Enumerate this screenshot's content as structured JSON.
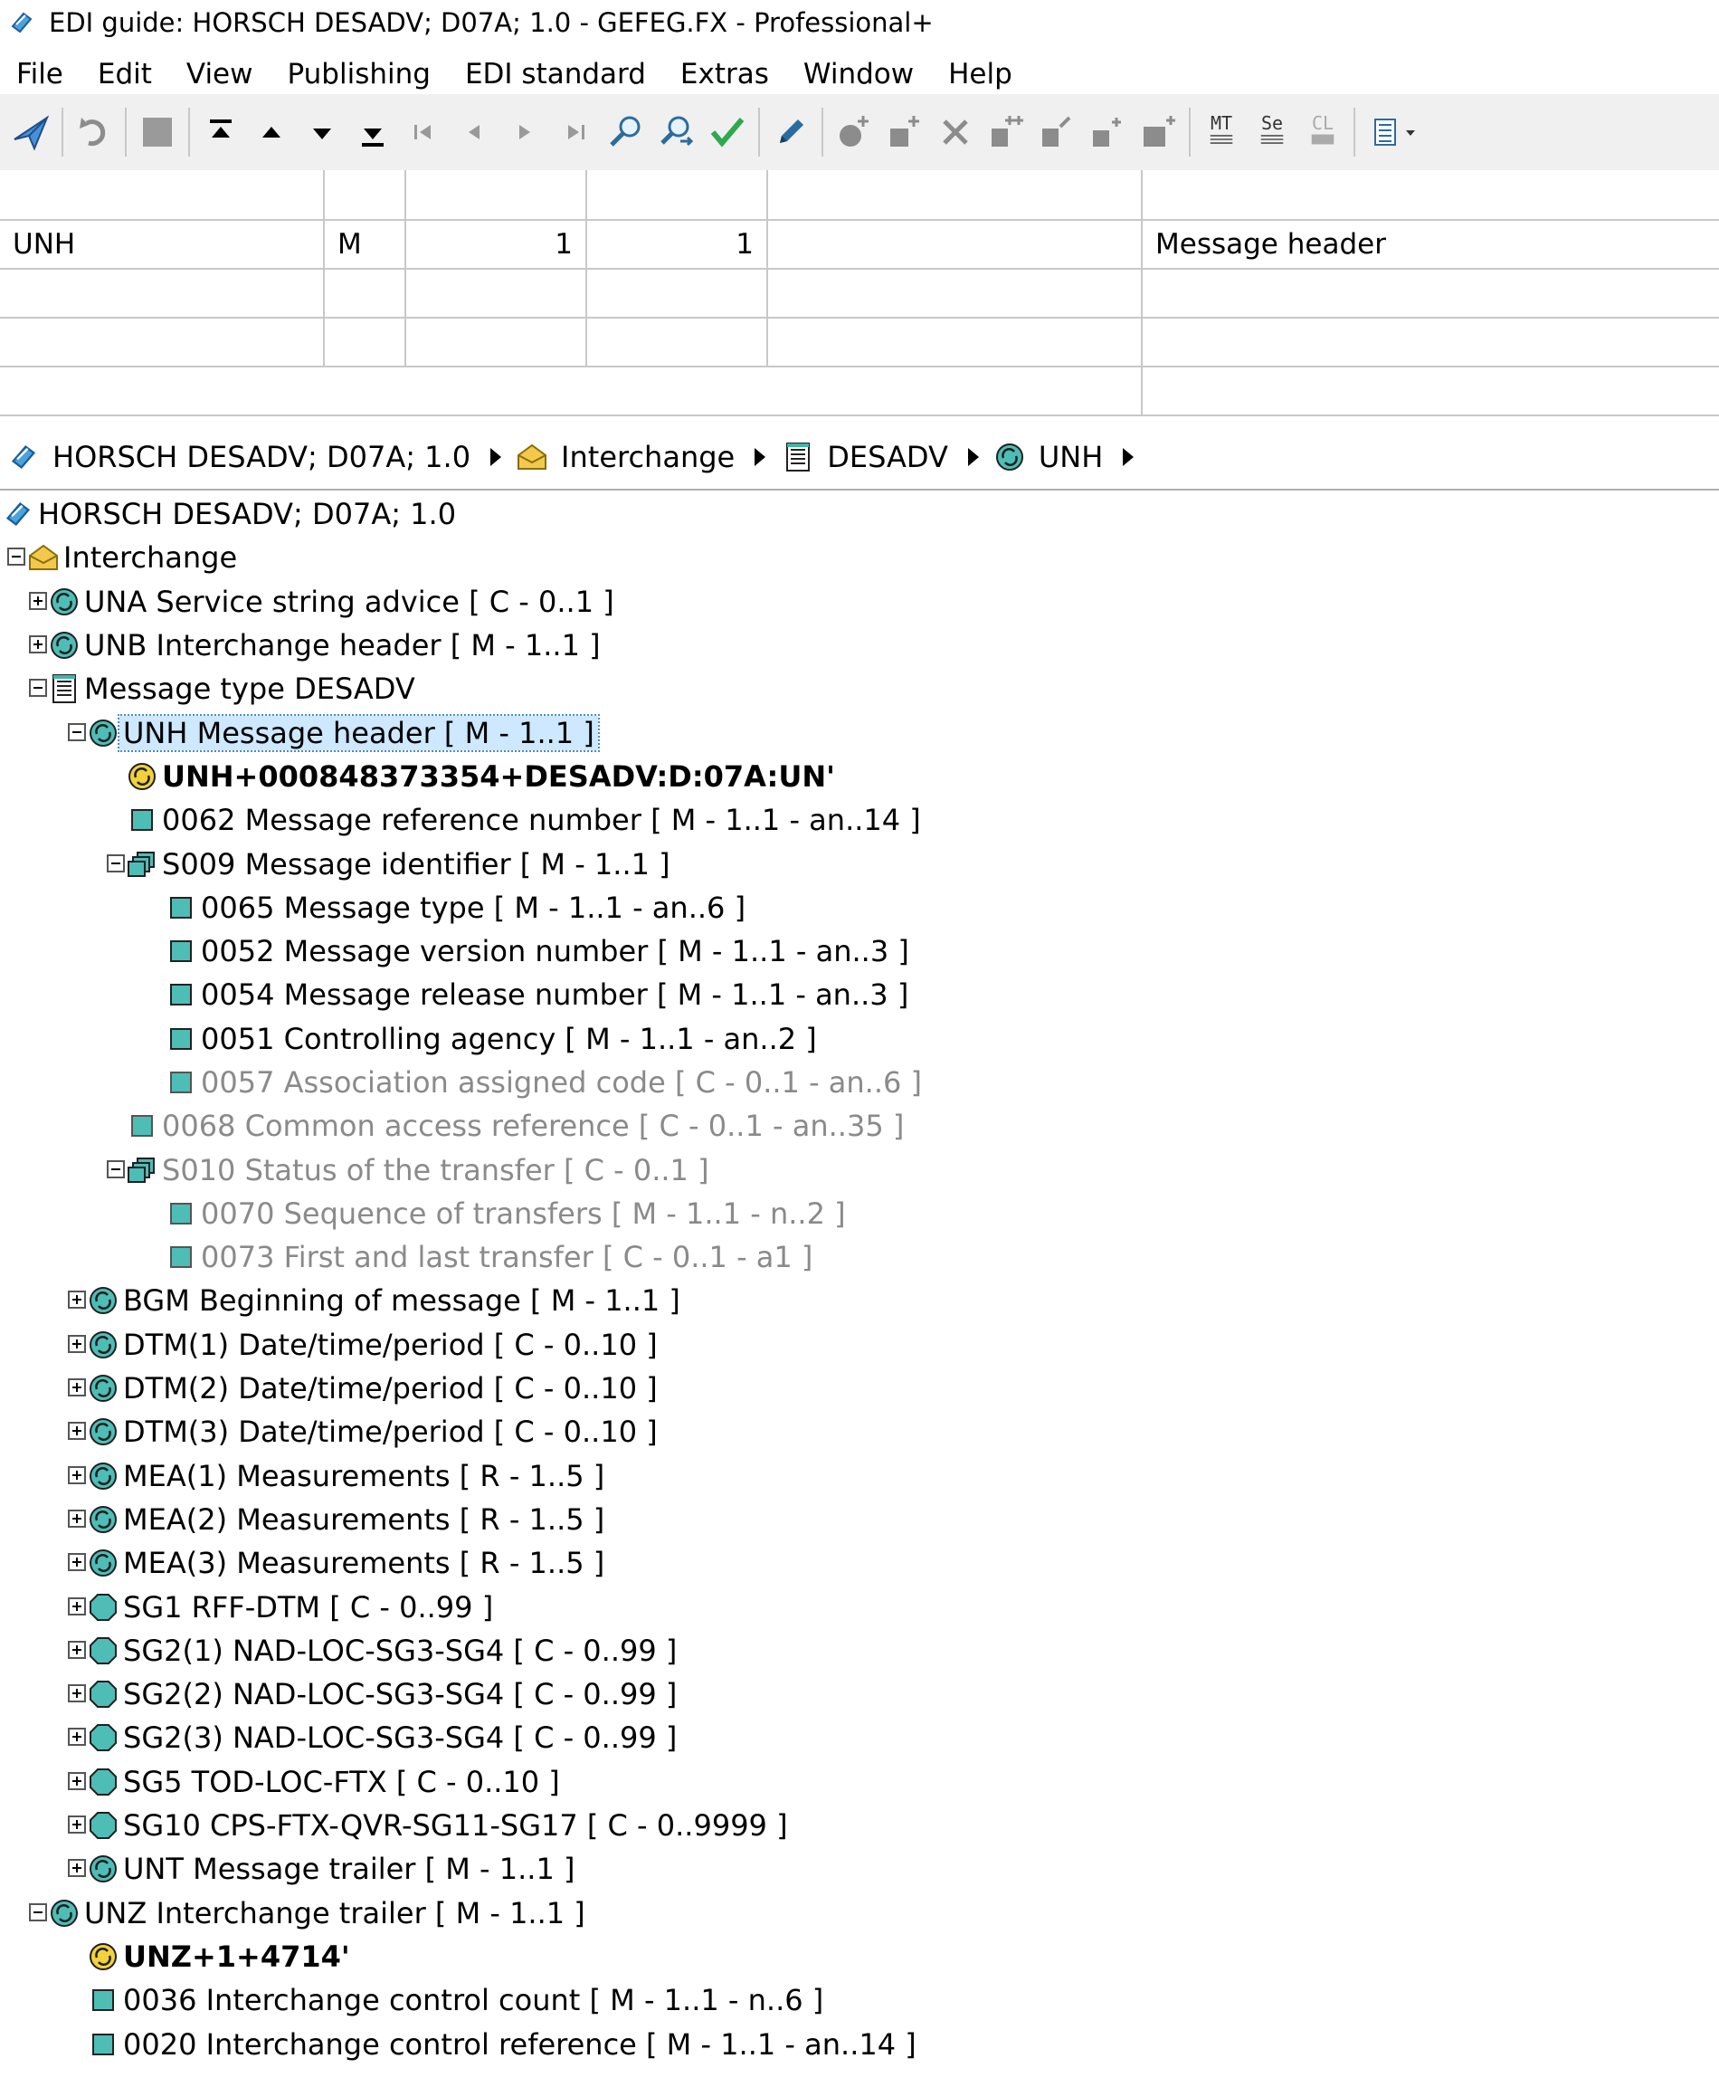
{
  "window": {
    "title": "EDI guide: HORSCH DESADV; D07A; 1.0 - GEFEG.FX - Professional+"
  },
  "menu": [
    "File",
    "Edit",
    "View",
    "Publishing",
    "EDI standard",
    "Extras",
    "Window",
    "Help"
  ],
  "toolbar": {
    "text_buttons": {
      "mt": "MT",
      "se": "Se",
      "cl": "CL"
    }
  },
  "grid": {
    "rows": [
      [
        "",
        "",
        "",
        "",
        "",
        ""
      ],
      [
        "UNH",
        "M",
        "1",
        "1",
        "",
        "Message header"
      ],
      [
        "",
        "",
        "",
        "",
        "",
        ""
      ],
      [
        "",
        "",
        "",
        "",
        "",
        ""
      ],
      [
        "",
        "",
        "",
        "",
        "",
        ""
      ]
    ]
  },
  "breadcrumb": [
    "HORSCH DESADV; D07A; 1.0",
    "Interchange",
    "DESADV",
    "UNH"
  ],
  "tree": [
    {
      "level": 0,
      "exp": "none",
      "icon": "guide",
      "label": "HORSCH DESADV; D07A; 1.0",
      "style": ""
    },
    {
      "level": 0,
      "exp": "minus",
      "icon": "envelope",
      "label": "Interchange",
      "style": ""
    },
    {
      "level": 1,
      "exp": "plus",
      "icon": "segment",
      "label": "UNA Service string advice [ C - 0..1 ]",
      "style": ""
    },
    {
      "level": 1,
      "exp": "plus",
      "icon": "segment",
      "label": "UNB Interchange header [ M - 1..1 ]",
      "style": ""
    },
    {
      "level": 1,
      "exp": "minus",
      "icon": "document",
      "label": "Message type DESADV",
      "style": ""
    },
    {
      "level": 2,
      "exp": "minus",
      "icon": "segment",
      "label": "UNH Message header [ M - 1..1 ]",
      "style": "sel"
    },
    {
      "level": 3,
      "exp": "none",
      "icon": "example",
      "label": "UNH+000848373354+DESADV:D:07A:UN'",
      "style": "bold"
    },
    {
      "level": 3,
      "exp": "none",
      "icon": "element",
      "label": "0062 Message reference number [ M - 1..1 - an..14 ]",
      "style": ""
    },
    {
      "level": 3,
      "exp": "minus",
      "icon": "composite",
      "label": "S009 Message identifier [ M - 1..1 ]",
      "style": ""
    },
    {
      "level": 4,
      "exp": "none",
      "icon": "element",
      "label": "0065 Message type [ M - 1..1 - an..6 ]",
      "style": ""
    },
    {
      "level": 4,
      "exp": "none",
      "icon": "element",
      "label": "0052 Message version number [ M - 1..1 - an..3 ]",
      "style": ""
    },
    {
      "level": 4,
      "exp": "none",
      "icon": "element",
      "label": "0054 Message release number [ M - 1..1 - an..3 ]",
      "style": ""
    },
    {
      "level": 4,
      "exp": "none",
      "icon": "element",
      "label": "0051 Controlling agency [ M - 1..1 - an..2 ]",
      "style": ""
    },
    {
      "level": 4,
      "exp": "none",
      "icon": "element",
      "label": "0057 Association assigned code [ C - 0..1 - an..6 ]",
      "style": "gray"
    },
    {
      "level": 3,
      "exp": "none",
      "icon": "element",
      "label": "0068 Common access reference [ C - 0..1 - an..35 ]",
      "style": "gray"
    },
    {
      "level": 3,
      "exp": "minus",
      "icon": "composite",
      "label": "S010 Status of the  transfer [ C - 0..1 ]",
      "style": "gray"
    },
    {
      "level": 4,
      "exp": "none",
      "icon": "element",
      "label": "0070 Sequence of transfers [ M - 1..1 - n..2 ]",
      "style": "gray"
    },
    {
      "level": 4,
      "exp": "none",
      "icon": "element",
      "label": "0073 First and last transfer [ C - 0..1 - a1 ]",
      "style": "gray"
    },
    {
      "level": 2,
      "exp": "plus",
      "icon": "segment",
      "label": "BGM Beginning of message [ M - 1..1 ]",
      "style": ""
    },
    {
      "level": 2,
      "exp": "plus",
      "icon": "segment",
      "label": "DTM(1) Date/time/period [ C - 0..10 ]",
      "style": ""
    },
    {
      "level": 2,
      "exp": "plus",
      "icon": "segment",
      "label": "DTM(2) Date/time/period [ C - 0..10 ]",
      "style": ""
    },
    {
      "level": 2,
      "exp": "plus",
      "icon": "segment",
      "label": "DTM(3) Date/time/period [ C - 0..10 ]",
      "style": ""
    },
    {
      "level": 2,
      "exp": "plus",
      "icon": "segment",
      "label": "MEA(1) Measurements [ R - 1..5 ]",
      "style": ""
    },
    {
      "level": 2,
      "exp": "plus",
      "icon": "segment",
      "label": "MEA(2) Measurements [ R - 1..5 ]",
      "style": ""
    },
    {
      "level": 2,
      "exp": "plus",
      "icon": "segment",
      "label": "MEA(3) Measurements [ R - 1..5 ]",
      "style": ""
    },
    {
      "level": 2,
      "exp": "plus",
      "icon": "group",
      "label": "SG1 RFF-DTM [ C - 0..99 ]",
      "style": ""
    },
    {
      "level": 2,
      "exp": "plus",
      "icon": "group",
      "label": "SG2(1) NAD-LOC-SG3-SG4 [ C - 0..99 ]",
      "style": ""
    },
    {
      "level": 2,
      "exp": "plus",
      "icon": "group",
      "label": "SG2(2) NAD-LOC-SG3-SG4 [ C - 0..99 ]",
      "style": ""
    },
    {
      "level": 2,
      "exp": "plus",
      "icon": "group",
      "label": "SG2(3) NAD-LOC-SG3-SG4 [ C - 0..99 ]",
      "style": ""
    },
    {
      "level": 2,
      "exp": "plus",
      "icon": "group",
      "label": "SG5 TOD-LOC-FTX [ C - 0..10 ]",
      "style": ""
    },
    {
      "level": 2,
      "exp": "plus",
      "icon": "group",
      "label": "SG10 CPS-FTX-QVR-SG11-SG17 [ C - 0..9999 ]",
      "style": ""
    },
    {
      "level": 2,
      "exp": "plus",
      "icon": "segment",
      "label": "UNT Message trailer [ M - 1..1 ]",
      "style": ""
    },
    {
      "level": 1,
      "exp": "minus",
      "icon": "segment",
      "label": "UNZ Interchange trailer [ M - 1..1 ]",
      "style": ""
    },
    {
      "level": 2,
      "exp": "none",
      "icon": "example",
      "label": "UNZ+1+4714'",
      "style": "bold"
    },
    {
      "level": 2,
      "exp": "none",
      "icon": "element",
      "label": "0036 Interchange control count [ M - 1..1 - n..6 ]",
      "style": ""
    },
    {
      "level": 2,
      "exp": "none",
      "icon": "element",
      "label": "0020 Interchange control reference [ M - 1..1 - an..14 ]",
      "style": ""
    }
  ]
}
